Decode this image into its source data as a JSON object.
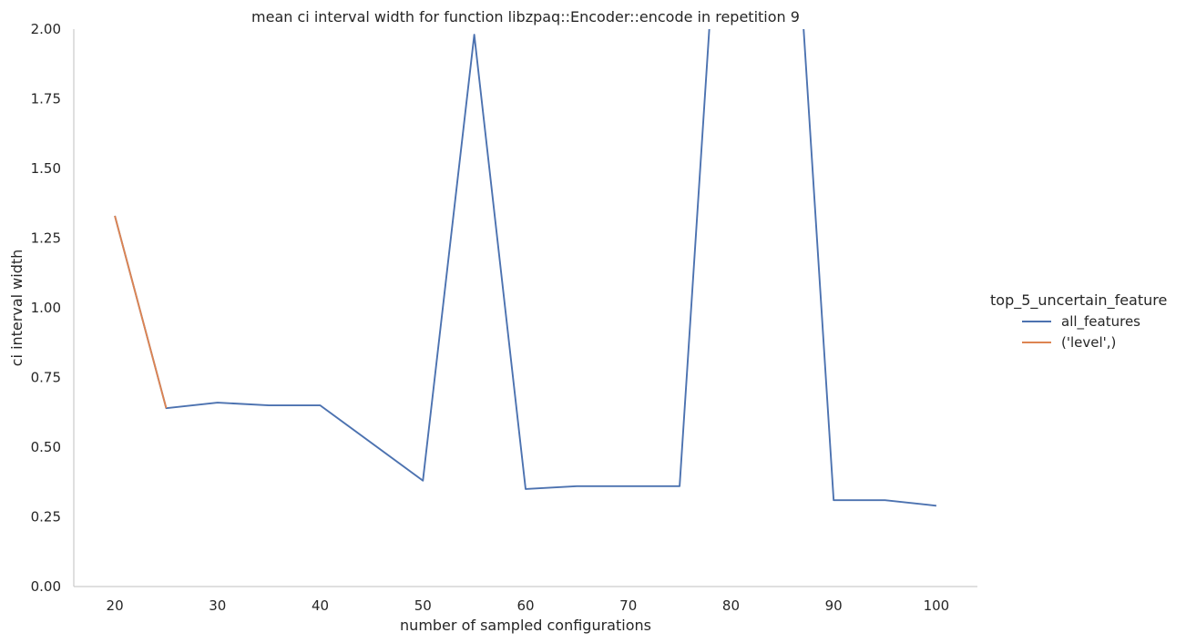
{
  "chart_data": {
    "type": "line",
    "title": "mean ci interval width for function libzpaq::Encoder::encode in repetition 9",
    "xlabel": "number of sampled configurations",
    "ylabel": "ci interval width",
    "xlim": [
      16,
      104
    ],
    "ylim": [
      0,
      2.0
    ],
    "xticks": [
      20,
      30,
      40,
      50,
      60,
      70,
      80,
      90,
      100
    ],
    "yticks": [
      "0.00",
      "0.25",
      "0.50",
      "0.75",
      "1.00",
      "1.25",
      "1.50",
      "1.75",
      "2.00"
    ],
    "legend_title": "top_5_uncertain_feature",
    "legend_position": "right",
    "grid": false,
    "series": [
      {
        "name": "all_features",
        "color": "#4c72b0",
        "x": [
          20,
          25,
          30,
          35,
          40,
          50,
          55,
          60,
          65,
          70,
          75,
          80,
          85,
          90,
          95,
          100
        ],
        "y": [
          1.33,
          0.64,
          0.66,
          0.65,
          0.65,
          0.38,
          1.98,
          0.35,
          0.36,
          0.36,
          0.36,
          3.2,
          3.2,
          0.31,
          0.31,
          0.29
        ]
      },
      {
        "name": "('level',)",
        "color": "#dd8452",
        "x": [
          20,
          25
        ],
        "y": [
          1.33,
          0.64
        ]
      }
    ]
  }
}
